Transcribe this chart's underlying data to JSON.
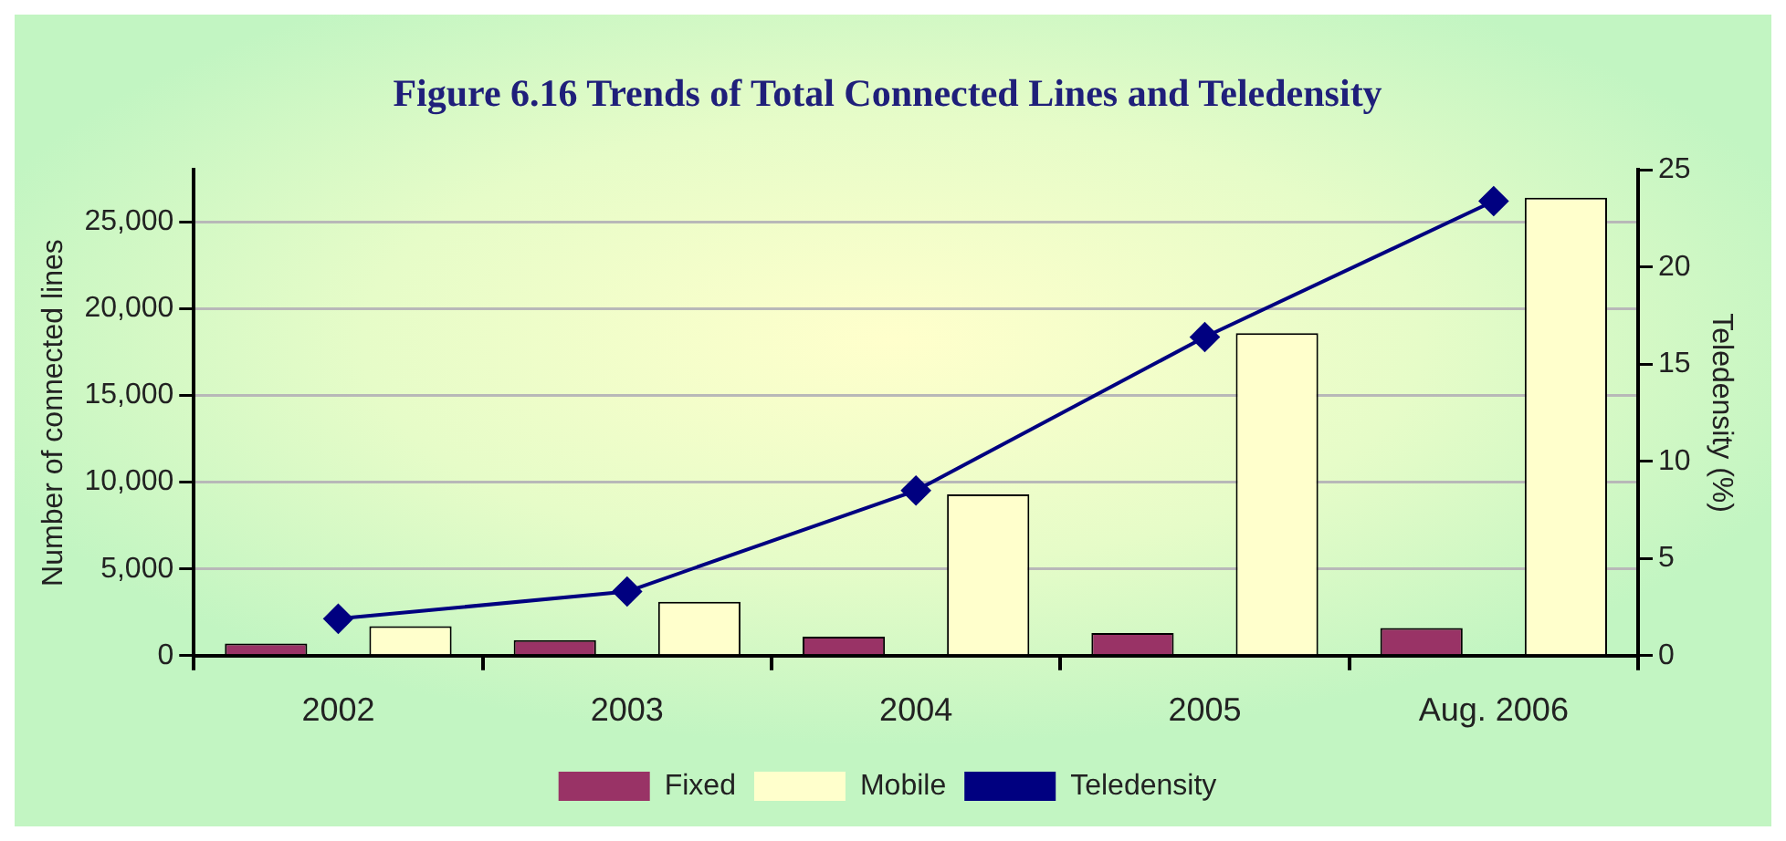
{
  "chart_data": {
    "type": "bar",
    "title": "Figure 6.16 Trends of Total Connected Lines and Teledensity",
    "ylabel": "Number of connected lines",
    "y2label": "Teledensity (%)",
    "categories": [
      "2002",
      "2003",
      "2004",
      "2005",
      "Aug. 2006"
    ],
    "series": [
      {
        "name": "Fixed",
        "color": "#993366",
        "values": [
          700,
          900,
          1100,
          1300,
          1600
        ]
      },
      {
        "name": "Mobile",
        "color": "#ffffcc",
        "values": [
          1700,
          3100,
          9300,
          18600,
          26400
        ]
      },
      {
        "name": "Teledensity",
        "type": "line",
        "axis": "y2",
        "color": "#000080",
        "marker": "diamond",
        "values": [
          1.9,
          3.3,
          8.5,
          16.4,
          23.4
        ]
      }
    ],
    "ylim": [
      0,
      28000
    ],
    "yticks": [
      0,
      {
        "value": 5000,
        "label": "5,000"
      },
      {
        "value": 10000,
        "label": "10,000"
      },
      {
        "value": 15000,
        "label": "15,000"
      },
      {
        "value": 20000,
        "label": "20,000"
      },
      {
        "value": 25000,
        "label": "25,000"
      }
    ],
    "y2lim": [
      0,
      25
    ],
    "y2ticks": [
      0,
      5,
      10,
      15,
      20,
      25
    ],
    "grid": "y",
    "legend": "bottom"
  }
}
